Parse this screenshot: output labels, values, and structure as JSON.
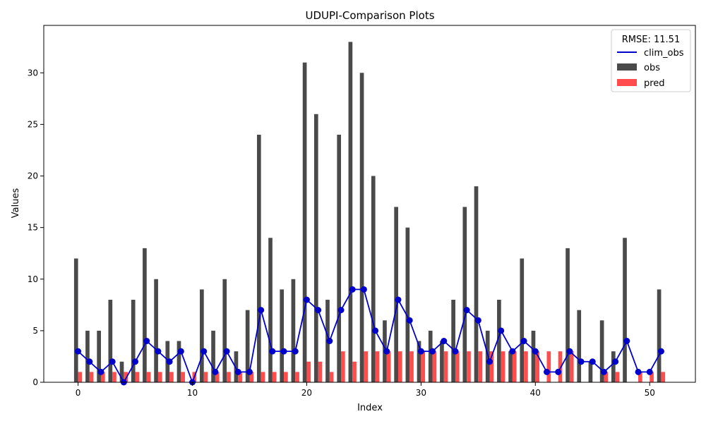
{
  "chart_data": {
    "type": "bar",
    "title": "UDUPI-Comparison Plots",
    "xlabel": "Index",
    "ylabel": "Values",
    "xlim": [
      -3,
      54
    ],
    "ylim": [
      0,
      34.6
    ],
    "xticks": [
      0,
      10,
      20,
      30,
      40,
      50
    ],
    "yticks": [
      0,
      5,
      10,
      15,
      20,
      25,
      30
    ],
    "x": [
      0,
      1,
      2,
      3,
      4,
      5,
      6,
      7,
      8,
      9,
      10,
      11,
      12,
      13,
      14,
      15,
      16,
      17,
      18,
      19,
      20,
      21,
      22,
      23,
      24,
      25,
      26,
      27,
      28,
      29,
      30,
      31,
      32,
      33,
      34,
      35,
      36,
      37,
      38,
      39,
      40,
      41,
      42,
      43,
      44,
      45,
      46,
      47,
      48,
      49,
      50,
      51
    ],
    "legend": {
      "title": "RMSE: 11.51",
      "placement": "top-right"
    },
    "series": [
      {
        "name": "clim_obs",
        "kind": "line",
        "color": "#0000cc",
        "values": [
          3,
          2,
          1,
          2,
          0,
          2,
          4,
          3,
          2,
          3,
          0,
          3,
          1,
          3,
          1,
          1,
          7,
          3,
          3,
          3,
          8,
          7,
          4,
          7,
          9,
          9,
          5,
          3,
          8,
          6,
          3,
          3,
          4,
          3,
          7,
          6,
          2,
          5,
          3,
          4,
          3,
          1,
          1,
          3,
          2,
          2,
          1,
          2,
          4,
          1,
          1,
          3
        ]
      },
      {
        "name": "obs",
        "kind": "bar",
        "color": "#4a4a4a",
        "values": [
          12,
          5,
          5,
          8,
          2,
          8,
          13,
          10,
          4,
          4,
          0,
          9,
          5,
          10,
          3,
          7,
          24,
          14,
          9,
          10,
          31,
          26,
          8,
          24,
          33,
          30,
          20,
          6,
          17,
          15,
          4,
          5,
          4,
          8,
          17,
          19,
          5,
          8,
          3,
          12,
          5,
          0,
          0,
          13,
          7,
          2,
          6,
          3,
          14,
          0,
          0,
          9
        ]
      },
      {
        "name": "pred",
        "kind": "bar",
        "color": "#ff4d4d",
        "values": [
          1,
          1,
          1,
          1,
          1,
          1,
          1,
          1,
          1,
          1,
          1,
          1,
          1,
          1,
          1,
          1,
          1,
          1,
          1,
          1,
          2,
          2,
          1,
          3,
          2,
          3,
          3,
          3,
          3,
          3,
          3,
          3,
          3,
          3,
          3,
          3,
          3,
          3,
          3,
          3,
          3,
          3,
          3,
          3,
          0,
          0,
          1,
          1,
          0,
          1,
          1,
          1
        ]
      }
    ]
  }
}
